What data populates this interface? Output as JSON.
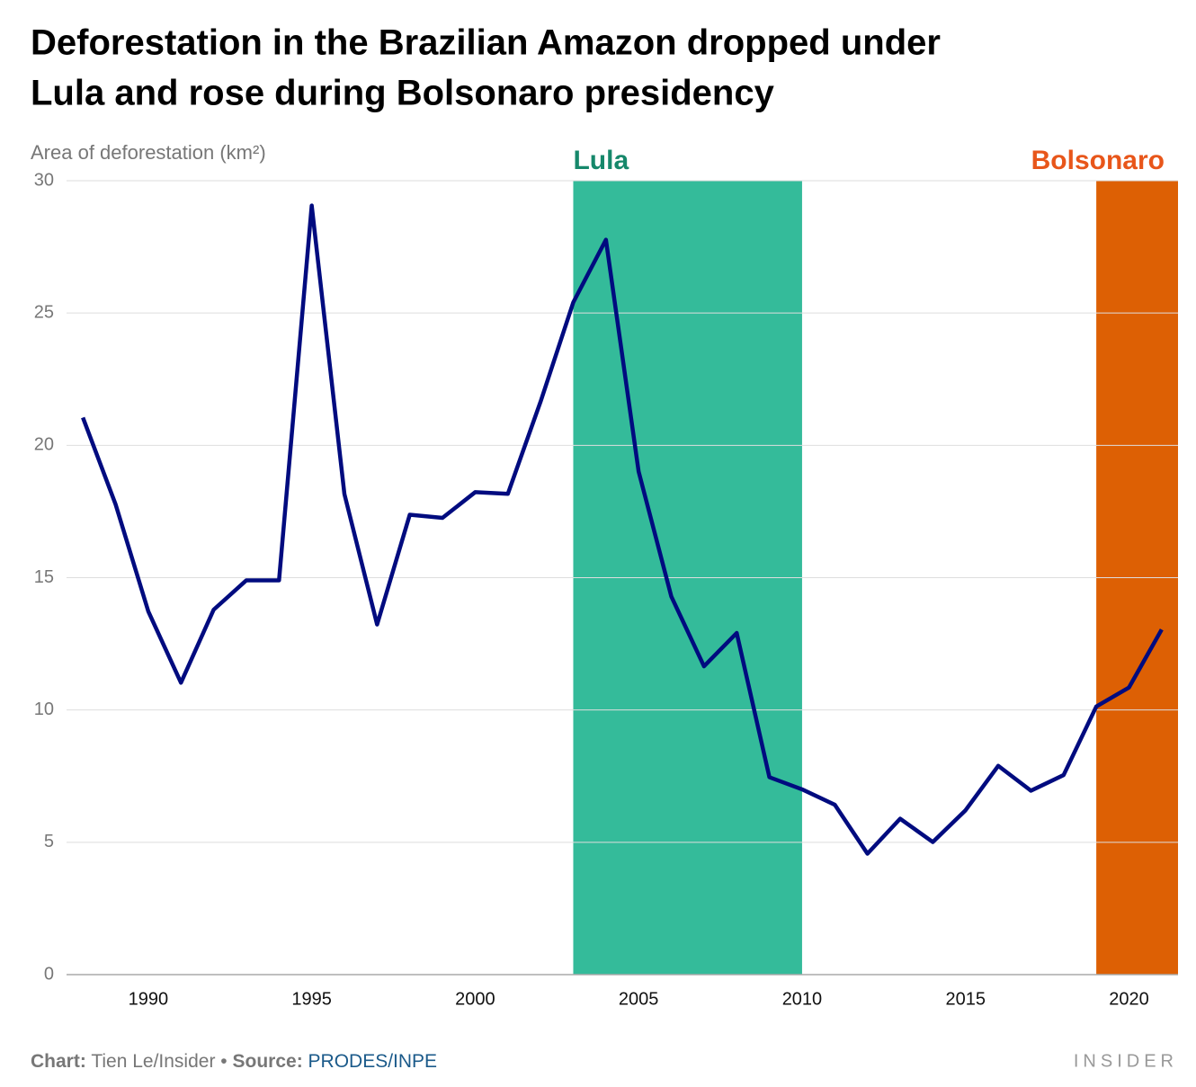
{
  "chart_data": {
    "type": "line",
    "title": [
      "Deforestation in the Brazilian Amazon dropped under",
      "Lula and rose during Bolsonaro presidency"
    ],
    "y_label": "Area of deforestation (km²)",
    "x": [
      1988,
      1989,
      1990,
      1991,
      1992,
      1993,
      1994,
      1995,
      1996,
      1997,
      1998,
      1999,
      2000,
      2001,
      2002,
      2003,
      2004,
      2005,
      2006,
      2007,
      2008,
      2009,
      2010,
      2011,
      2012,
      2013,
      2014,
      2015,
      2016,
      2017,
      2018,
      2019,
      2020,
      2021
    ],
    "values": [
      21.05,
      17.77,
      13.73,
      11.03,
      13.79,
      14.9,
      14.9,
      29.06,
      18.16,
      13.23,
      17.38,
      17.26,
      18.23,
      18.17,
      21.65,
      25.4,
      27.77,
      19.01,
      14.29,
      11.65,
      12.91,
      7.46,
      7.0,
      6.42,
      4.57,
      5.89,
      5.01,
      6.21,
      7.89,
      6.95,
      7.54,
      10.13,
      10.85,
      13.04
    ],
    "color": "#000b7f",
    "xlim": [
      1987.5,
      2021.5
    ],
    "ylim": [
      0,
      30
    ],
    "xticks": [
      1990,
      1995,
      2000,
      2005,
      2010,
      2015,
      2020
    ],
    "yticks": [
      0,
      5,
      10,
      15,
      20,
      25,
      30
    ],
    "grid": true,
    "highlights": [
      {
        "label": "Lula",
        "start": 2003,
        "end": 2010,
        "color": "#34bb9a",
        "label_color": "#16886b"
      },
      {
        "label": "Bolsonaro",
        "start": 2019,
        "end": 2021.5,
        "color": "#dd6004",
        "label_color": "#e8561a"
      }
    ]
  },
  "footer": {
    "chart_label": "Chart:",
    "chart": "Tien Le/Insider",
    "separator": "•",
    "source_label": "Source:",
    "source": "PRODES/INPE",
    "brand": "INSIDER"
  }
}
